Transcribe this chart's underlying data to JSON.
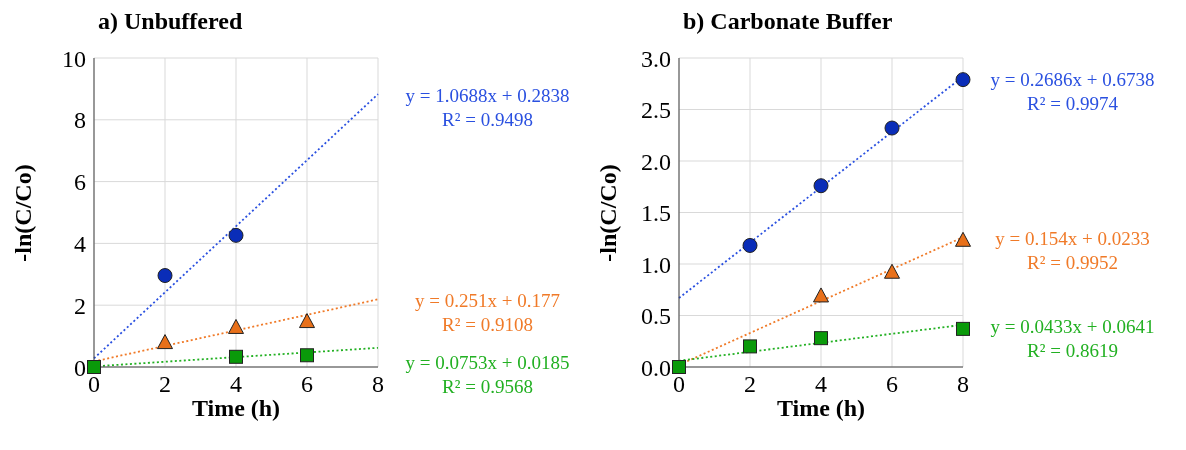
{
  "chart_data": [
    {
      "type": "scatter",
      "title": "a) Unbuffered",
      "xlabel": "Time (h)",
      "ylabel": "-ln(C/Co)",
      "xlim": [
        0,
        8
      ],
      "xticks": [
        0,
        2,
        4,
        6,
        8
      ],
      "ylim": [
        0,
        10
      ],
      "yticks": [
        0,
        2,
        4,
        6,
        8,
        10
      ],
      "grid": true,
      "series": [
        {
          "color": "#0a2db8",
          "marker": "circle",
          "x": [
            2,
            4
          ],
          "values": [
            2.96,
            4.26
          ]
        },
        {
          "color": "#e8701a",
          "marker": "triangle",
          "x": [
            2,
            4,
            6
          ],
          "values": [
            0.79,
            1.28,
            1.47
          ]
        },
        {
          "color": "#0a9a0a",
          "marker": "square",
          "x": [
            0,
            4,
            6
          ],
          "values": [
            0,
            0.33,
            0.38
          ]
        },
        {
          "type": "line",
          "color": "#2a50e0",
          "marker": "none",
          "line_style": "dotted",
          "x": [
            0,
            8
          ],
          "values": [
            0.28,
            8.83
          ]
        },
        {
          "type": "line",
          "color": "#f07a28",
          "marker": "none",
          "line_style": "dotted",
          "x": [
            0,
            8
          ],
          "values": [
            0.18,
            2.19
          ]
        },
        {
          "type": "line",
          "color": "#22b022",
          "marker": "none",
          "line_style": "dotted",
          "x": [
            0,
            8
          ],
          "values": [
            0.02,
            0.62
          ]
        }
      ],
      "annotations": [
        "y = 1.0688x + 0.2838",
        "R² = 0.9498",
        "y = 0.251x + 0.177",
        "R² = 0.9108",
        "y = 0.0753x + 0.0185",
        "R² = 0.9568"
      ]
    },
    {
      "type": "scatter",
      "title": "b) Carbonate Buffer",
      "xlabel": "Time (h)",
      "ylabel": "-ln(C/Co)",
      "xlim": [
        0,
        8
      ],
      "xticks": [
        0,
        2,
        4,
        6,
        8
      ],
      "ylim": [
        0,
        3
      ],
      "yticks": [
        {
          "value": 0,
          "label": "0.0"
        },
        0.5,
        {
          "value": 1,
          "label": "1.0"
        },
        1.5,
        {
          "value": 2,
          "label": "2.0"
        },
        2.5,
        {
          "value": 3,
          "label": "3.0"
        }
      ],
      "grid": true,
      "series": [
        {
          "color": "#0a2db8",
          "marker": "circle",
          "x": [
            2,
            4,
            6,
            8
          ],
          "values": [
            1.18,
            1.76,
            2.32,
            2.79
          ]
        },
        {
          "color": "#e8701a",
          "marker": "triangle",
          "x": [
            4,
            6,
            8
          ],
          "values": [
            0.69,
            0.92,
            1.23
          ]
        },
        {
          "color": "#0a9a0a",
          "marker": "square",
          "x": [
            0,
            2,
            4,
            8
          ],
          "values": [
            0,
            0.2,
            0.28,
            0.37
          ]
        },
        {
          "type": "line",
          "color": "#2a50e0",
          "marker": "none",
          "line_style": "dotted",
          "x": [
            0,
            8
          ],
          "values": [
            0.67,
            2.82
          ]
        },
        {
          "type": "line",
          "color": "#f07a28",
          "marker": "none",
          "line_style": "dotted",
          "x": [
            0,
            8
          ],
          "values": [
            0.02,
            1.26
          ]
        },
        {
          "type": "line",
          "color": "#22b022",
          "marker": "none",
          "line_style": "dotted",
          "x": [
            0,
            8
          ],
          "values": [
            0.06,
            0.41
          ]
        }
      ],
      "annotations": [
        "y = 0.2686x + 0.6738",
        "R² = 0.9974",
        "y = 0.154x + 0.0233",
        "R² = 0.9952",
        "y = 0.0433x + 0.0641",
        "R² = 0.8619"
      ]
    }
  ]
}
